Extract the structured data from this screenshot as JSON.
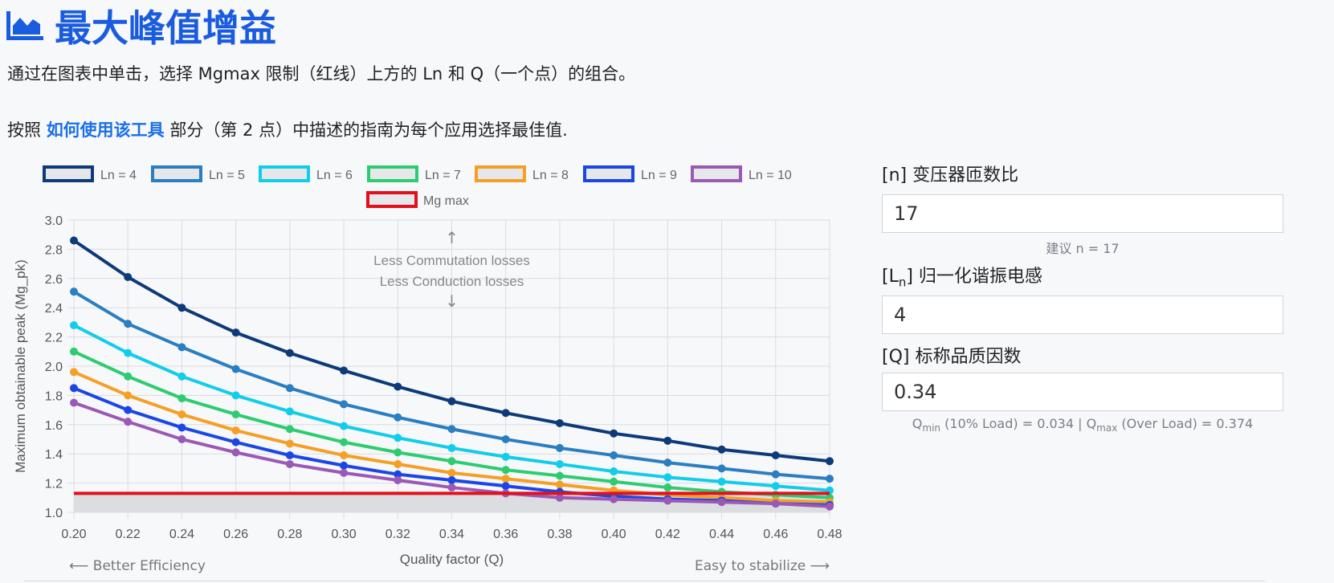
{
  "header": {
    "title": "最大峰值增益",
    "icon": "area-chart-icon",
    "accent": "#1a5ce0"
  },
  "description": {
    "line1": "通过在图表中单击，选择 Mgmax 限制（红线）上方的 Ln 和 Q（一个点）的组合。",
    "line2_prefix": "按照 ",
    "line2_link": "如何使用该工具",
    "line2_suffix": " 部分（第 2 点）中描述的指南为每个应用选择最佳值."
  },
  "chart_data": {
    "type": "line",
    "title": "",
    "xlabel": "Quality factor (Q)",
    "ylabel": "Maximum obtainable peak (Mg_pk)",
    "x": [
      0.2,
      0.22,
      0.24,
      0.26,
      0.28,
      0.3,
      0.32,
      0.34,
      0.36,
      0.38,
      0.4,
      0.42,
      0.44,
      0.46,
      0.48
    ],
    "x_ticks": [
      "0.20",
      "0.22",
      "0.24",
      "0.26",
      "0.28",
      "0.30",
      "0.32",
      "0.34",
      "0.36",
      "0.38",
      "0.40",
      "0.42",
      "0.44",
      "0.46",
      "0.48"
    ],
    "xlim": [
      0.2,
      0.48
    ],
    "ylim": [
      1.0,
      3.0
    ],
    "y_ticks": [
      "1.0",
      "1.2",
      "1.4",
      "1.6",
      "1.8",
      "2.0",
      "2.2",
      "2.4",
      "2.6",
      "2.8",
      "3.0"
    ],
    "grid": true,
    "legend_position": "top",
    "series": [
      {
        "name": "Ln = 4",
        "color": "#0d3a78",
        "values": [
          2.86,
          2.61,
          2.4,
          2.23,
          2.09,
          1.97,
          1.86,
          1.76,
          1.68,
          1.61,
          1.54,
          1.49,
          1.43,
          1.39,
          1.35
        ]
      },
      {
        "name": "Ln = 5",
        "color": "#2a7ec2",
        "values": [
          2.51,
          2.29,
          2.13,
          1.98,
          1.85,
          1.74,
          1.65,
          1.57,
          1.5,
          1.44,
          1.39,
          1.34,
          1.3,
          1.26,
          1.23
        ]
      },
      {
        "name": "Ln = 6",
        "color": "#12cdea",
        "values": [
          2.28,
          2.09,
          1.93,
          1.8,
          1.69,
          1.59,
          1.51,
          1.44,
          1.38,
          1.33,
          1.28,
          1.24,
          1.21,
          1.18,
          1.15
        ]
      },
      {
        "name": "Ln = 7",
        "color": "#2ecc71",
        "values": [
          2.1,
          1.93,
          1.78,
          1.67,
          1.57,
          1.48,
          1.41,
          1.35,
          1.29,
          1.25,
          1.21,
          1.17,
          1.14,
          1.12,
          1.1
        ]
      },
      {
        "name": "Ln = 8",
        "color": "#f59f25",
        "values": [
          1.96,
          1.8,
          1.67,
          1.56,
          1.47,
          1.39,
          1.33,
          1.27,
          1.23,
          1.19,
          1.15,
          1.12,
          1.1,
          1.08,
          1.07
        ]
      },
      {
        "name": "Ln = 9",
        "color": "#1b46e6",
        "values": [
          1.85,
          1.7,
          1.58,
          1.48,
          1.39,
          1.32,
          1.26,
          1.22,
          1.18,
          1.14,
          1.11,
          1.09,
          1.08,
          1.06,
          1.05
        ]
      },
      {
        "name": "Ln = 10",
        "color": "#9b59b6",
        "values": [
          1.75,
          1.62,
          1.5,
          1.41,
          1.33,
          1.27,
          1.22,
          1.17,
          1.13,
          1.1,
          1.09,
          1.08,
          1.07,
          1.06,
          1.04
        ]
      }
    ],
    "limit": {
      "name": "Mg max",
      "color": "#e3101c",
      "value": 1.13
    },
    "annotations": {
      "up_arrow": "↑",
      "line1": "Less Commutation losses",
      "line2": "Less Conduction losses",
      "down_arrow": "↓",
      "left": "⟵ Better Efficiency",
      "right": "Easy to stabilize ⟶"
    }
  },
  "panel": {
    "n": {
      "label": "[n] 变压器匝数比",
      "value": "17",
      "hint": "建议 n = 17"
    },
    "ln": {
      "label_pre": "[L",
      "label_sub": "n",
      "label_post": "] 归一化谐振电感",
      "value": "4"
    },
    "q": {
      "label": "[Q] 标称品质因数",
      "value": "0.34",
      "hint_a": "Q",
      "hint_a_sub": "min",
      "hint_b": " (10% Load) = 0.034 | Q",
      "hint_b_sub": "max",
      "hint_c": " (Over Load) = 0.374"
    }
  }
}
